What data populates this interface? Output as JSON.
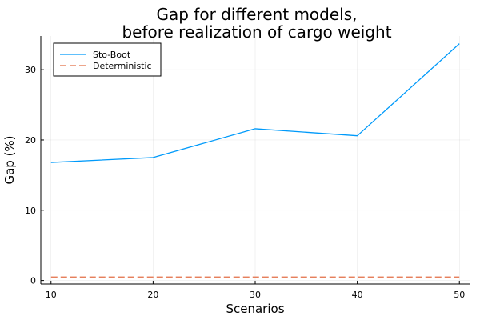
{
  "chart_data": {
    "type": "line",
    "title_line1": "Gap for different models,",
    "title_line2": "before realization of cargo weight",
    "xlabel": "Scenarios",
    "ylabel": "Gap (%)",
    "x": [
      10,
      20,
      30,
      40,
      50
    ],
    "xlim": [
      9,
      51
    ],
    "ylim": [
      -0.5,
      34.8
    ],
    "xticks": [
      "10",
      "20",
      "30",
      "40",
      "50"
    ],
    "yticks": [
      "0",
      "10",
      "20",
      "30"
    ],
    "grid": true,
    "legend_position": "top-left",
    "series": [
      {
        "name": "Sto-Boot",
        "values": [
          16.8,
          17.5,
          21.6,
          20.6,
          33.7
        ],
        "color": "#009AFA",
        "style": "solid"
      },
      {
        "name": "Deterministic",
        "values": [
          0.5,
          0.5,
          0.5,
          0.5,
          0.5
        ],
        "color": "#E26F46",
        "style": "dashed"
      }
    ]
  }
}
